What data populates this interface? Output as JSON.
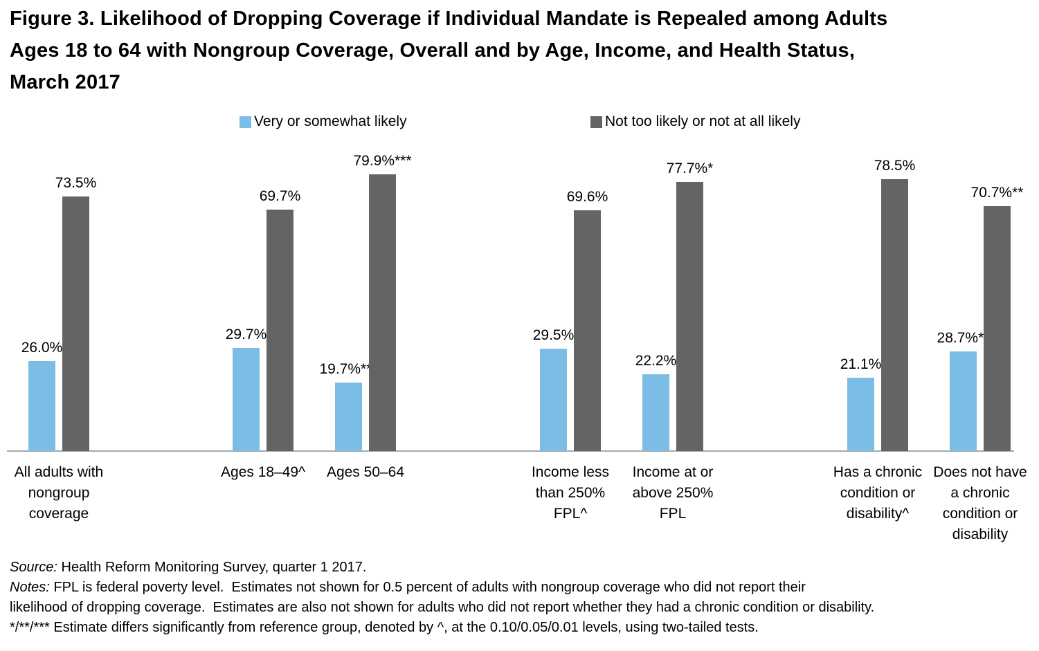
{
  "title_lines": [
    "Figure 3. Likelihood of Dropping Coverage if Individual Mandate is Repealed among Adults",
    "Ages 18 to 64 with Nongroup Coverage, Overall and by Age, Income, and Health Status,",
    "March 2017"
  ],
  "legend": {
    "items": [
      {
        "label": "Very or somewhat likely",
        "color": "#7CBDE6"
      },
      {
        "label": "Not too likely or not at all likely",
        "color": "#636466"
      }
    ]
  },
  "chart_data": {
    "type": "bar",
    "title": "Figure 3. Likelihood of Dropping Coverage if Individual Mandate is Repealed among Adults Ages 18 to 64 with Nongroup Coverage, Overall and by Age, Income, and Health Status, March 2017",
    "unit": "percent",
    "ylim": [
      0,
      90
    ],
    "grid": false,
    "legend_position": "top",
    "axis_line_color": "#A6A8AB",
    "series_names": [
      "Very or somewhat likely",
      "Not too likely or not at all likely"
    ],
    "colors": [
      "#7CBDE6",
      "#636466"
    ],
    "groups": [
      {
        "category": "All adults with nongroup coverage",
        "category_lines": [
          "All adults with",
          "nongroup",
          "coverage"
        ],
        "values": [
          26.0,
          73.5
        ],
        "labels": [
          "26.0%",
          "73.5%"
        ]
      },
      {
        "category": "Ages 18–49^",
        "category_lines": [
          "Ages 18–49^"
        ],
        "values": [
          29.7,
          69.7
        ],
        "labels": [
          "29.7%",
          "69.7%"
        ]
      },
      {
        "category": "Ages 50–64",
        "category_lines": [
          "Ages 50–64"
        ],
        "values": [
          19.7,
          79.9
        ],
        "labels": [
          "19.7%***",
          "79.9%***"
        ]
      },
      {
        "category": "Income less than 250% FPL^",
        "category_lines": [
          "Income less",
          "than 250%",
          "FPL^"
        ],
        "values": [
          29.5,
          69.6
        ],
        "labels": [
          "29.5%",
          "69.6%"
        ]
      },
      {
        "category": "Income at or above 250% FPL",
        "category_lines": [
          "Income at or",
          "above 250%",
          "FPL"
        ],
        "values": [
          22.2,
          77.7
        ],
        "labels": [
          "22.2%",
          "77.7%*"
        ]
      },
      {
        "category": "Has a chronic condition or disability^",
        "category_lines": [
          "Has a chronic",
          "condition or",
          "disability^"
        ],
        "values": [
          21.1,
          78.5
        ],
        "labels": [
          "21.1%",
          "78.5%"
        ]
      },
      {
        "category": "Does not have a chronic condition or disability",
        "category_lines": [
          "Does not have",
          "a chronic",
          "condition or",
          "disability"
        ],
        "values": [
          28.7,
          70.7
        ],
        "labels": [
          "28.7%**",
          "70.7%**"
        ]
      }
    ]
  },
  "footer": {
    "lines": [
      {
        "italic_prefix": "Source:",
        "text": " Health Reform Monitoring Survey, quarter 1 2017."
      },
      {
        "italic_prefix": "Notes:",
        "text": " FPL is federal poverty level.  Estimates not shown for 0.5 percent of adults with nongroup coverage who did not report their"
      },
      {
        "italic_prefix": "",
        "text": "likelihood of dropping coverage.  Estimates are also not shown for adults who did not report whether they had a chronic condition or disability."
      },
      {
        "italic_prefix": "",
        "text": "*/**/*** Estimate differs significantly from reference group, denoted by ^, at the 0.10/0.05/0.01 levels, using two-tailed tests."
      }
    ]
  }
}
